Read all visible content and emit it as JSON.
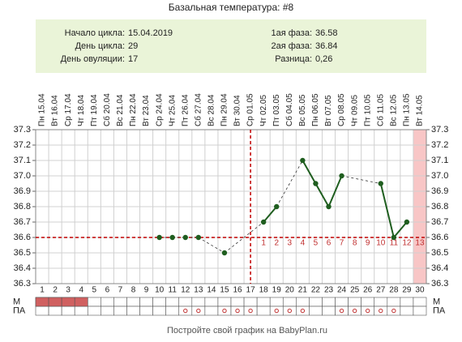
{
  "title": "Базальная температура: #8",
  "info": {
    "left": [
      {
        "label": "Начало цикла:",
        "value": "15.04.2019"
      },
      {
        "label": "День цикла:",
        "value": "29"
      },
      {
        "label": "День овуляции:",
        "value": "17"
      }
    ],
    "right": [
      {
        "label": "1ая фаза:",
        "value": "36.58"
      },
      {
        "label": "2ая фаза:",
        "value": "36.84"
      },
      {
        "label": "Разница:",
        "value": "0,26"
      }
    ]
  },
  "chart_data": {
    "type": "line",
    "x": [
      1,
      2,
      3,
      4,
      5,
      6,
      7,
      8,
      9,
      10,
      11,
      12,
      13,
      14,
      15,
      16,
      17,
      18,
      19,
      20,
      21,
      22,
      23,
      24,
      25,
      26,
      27,
      28,
      29,
      30
    ],
    "date_labels": [
      "Пн 15.04",
      "Вт 16.04",
      "Ср 17.04",
      "Чт 18.04",
      "Пт 19.04",
      "Сб 20.04",
      "Вс 21.04",
      "Пн 22.04",
      "Вт 23.04",
      "Ср 24.04",
      "Чт 25.04",
      "Пт 26.04",
      "Сб 27.04",
      "Вс 28.04",
      "Пн 29.04",
      "Вт 30.04",
      "Ср 01.05",
      "Чт 02.05",
      "Пт 03.05",
      "Сб 04.05",
      "Вс 05.05",
      "Пн 06.05",
      "Вт 07.05",
      "Ср 08.05",
      "Чт 09.05",
      "Пт 10.05",
      "Сб 11.05",
      "Вс 12.05",
      "Пн 13.05",
      "Вт 14.05"
    ],
    "values": [
      null,
      null,
      null,
      null,
      null,
      null,
      null,
      null,
      null,
      36.6,
      36.6,
      36.6,
      36.6,
      null,
      36.5,
      null,
      null,
      36.7,
      36.8,
      null,
      37.1,
      36.95,
      36.8,
      37.0,
      null,
      null,
      36.95,
      36.6,
      36.7,
      null
    ],
    "color": "#1f5e1f",
    "xlim": [
      0.5,
      30.5
    ],
    "ylim": [
      36.3,
      37.3
    ],
    "yticks": [
      36.3,
      36.4,
      36.5,
      36.6,
      36.7,
      36.8,
      36.9,
      {
        "value": 37,
        "label": "37.0"
      },
      37.1,
      37.2,
      37.3
    ],
    "grid": true,
    "coverline": 36.6,
    "ovulation_day": 17,
    "phase2_labels": [
      "1",
      "2",
      "3",
      "4",
      "5",
      "6",
      "7",
      "8",
      "9",
      "10",
      "11",
      "12",
      "13"
    ],
    "highlight_day": 30,
    "row_labels": [
      "М",
      "ПА"
    ],
    "m_days": [
      1,
      2,
      3,
      4
    ],
    "pa_days": [
      12,
      13,
      15,
      16,
      17,
      19,
      20,
      21,
      24,
      25,
      26,
      27,
      28
    ]
  },
  "footer": "Постройте свой график на BabyPlan.ru"
}
